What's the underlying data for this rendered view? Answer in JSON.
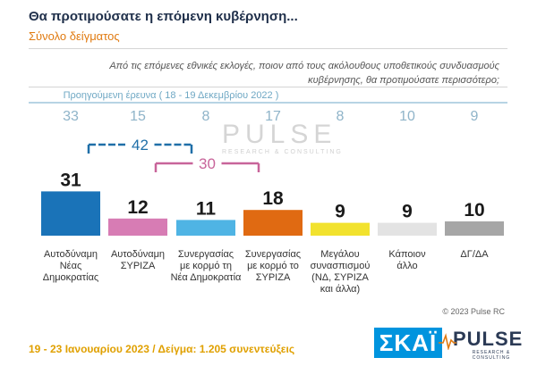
{
  "header": {
    "title": "Θα προτιμούσατε η επόμενη κυβέρνηση...",
    "subtitle": "Σύνολο δείγματος",
    "question_line1": "Από τις επόμενες εθνικές εκλογές, ποιον από τους ακόλουθους υποθετικούς συνδυασμούς",
    "question_line2": "κυβέρνησης, θα προτιμούσατε περισσότερο;"
  },
  "previous_survey": {
    "label": "Προηγούμενη έρευνα ( 18 - 19 Δεκεμβρίου 2022 )",
    "values": [
      33,
      15,
      8,
      17,
      8,
      10,
      9
    ]
  },
  "brackets": [
    {
      "value": "42",
      "from": 0,
      "to": 2,
      "color": "#1f6fa8"
    },
    {
      "value": "30",
      "from": 1,
      "to": 3,
      "color": "#c8649a"
    }
  ],
  "chart_data": {
    "type": "bar",
    "categories": [
      "Αυτοδύναμη Νέας Δημοκρατίας",
      "Αυτοδύναμη ΣΥΡΙΖΑ",
      "Συνεργασίας με κορμό τη Νέα Δημοκρατία",
      "Συνεργασίας με κορμό το ΣΥΡΙΖΑ",
      "Μεγάλου συνασπισμού (ΝΔ, ΣΥΡΙΖΑ και άλλα)",
      "Κάποιον άλλο",
      "ΔΓ/ΔΑ"
    ],
    "category_lines": [
      [
        "Αυτοδύναμη",
        "Νέας",
        "Δημοκρατίας"
      ],
      [
        "Αυτοδύναμη",
        "ΣΥΡΙΖΑ"
      ],
      [
        "Συνεργασίας",
        "με κορμό τη",
        "Νέα Δημοκρατία"
      ],
      [
        "Συνεργασίας",
        "με κορμό το",
        "ΣΥΡΙΖΑ"
      ],
      [
        "Μεγάλου",
        "συνασπισμού",
        "(ΝΔ, ΣΥΡΙΖΑ",
        "και άλλα)"
      ],
      [
        "Κάποιον",
        "άλλο"
      ],
      [
        "ΔΓ/ΔΑ"
      ]
    ],
    "values": [
      31,
      12,
      11,
      18,
      9,
      9,
      10
    ],
    "colors": [
      "#1a73b8",
      "#d77cb4",
      "#4fb4e4",
      "#e06a12",
      "#f2e22e",
      "#e3e3e3",
      "#a6a6a6"
    ],
    "title": "Θα προτιμούσατε η επόμενη κυβέρνηση...",
    "subtitle": "Σύνολο δείγματος",
    "ylim": [
      0,
      35
    ]
  },
  "watermark": {
    "text": "PULSE",
    "sub": "RESEARCH & CONSULTING"
  },
  "copyright": "© 2023 Pulse RC",
  "footer": "19 - 23 Ιανουαρίου 2023 / Δείγμα: 1.205 συνεντεύξεις",
  "logos": {
    "skai": "ΣΚΑΪ",
    "pulse": "PULSE",
    "pulse_sub": "RESEARCH & CONSULTING"
  },
  "colors": {
    "title": "#1f2f4a",
    "subtitle": "#e07a10",
    "footer": "#e0a000",
    "skai_bg": "#0094de"
  }
}
